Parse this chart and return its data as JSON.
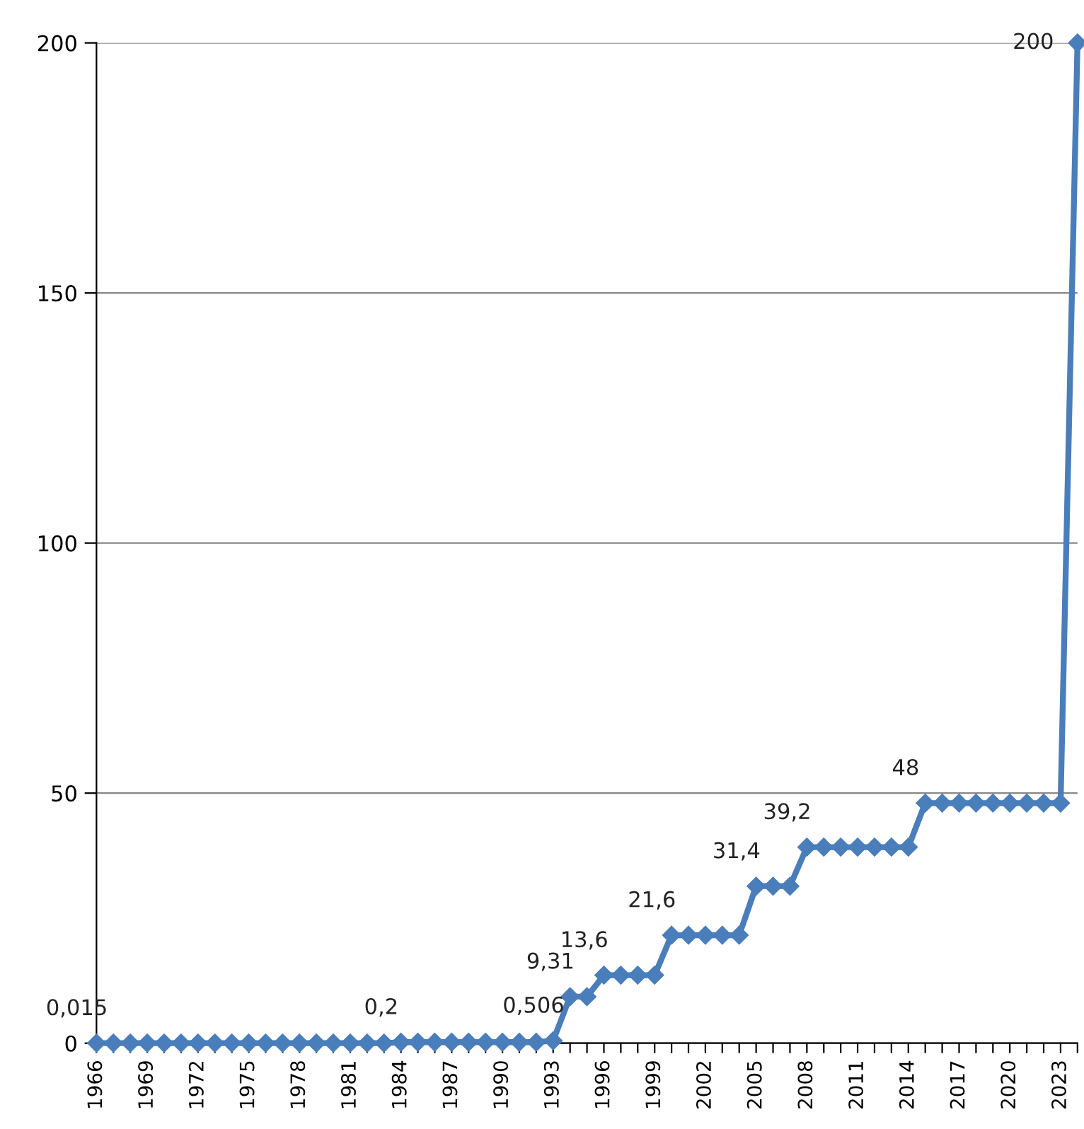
{
  "chart_data": {
    "type": "line",
    "categories": [
      "1966",
      null,
      null,
      "1969",
      null,
      null,
      "1972",
      null,
      null,
      "1975",
      null,
      null,
      "1978",
      null,
      null,
      "1981",
      null,
      null,
      "1984",
      null,
      null,
      "1987",
      null,
      null,
      "1990",
      null,
      null,
      "1993",
      null,
      null,
      "1996",
      null,
      null,
      "1999",
      null,
      null,
      "2002",
      null,
      null,
      "2005",
      null,
      null,
      "2008",
      null,
      null,
      "2011",
      null,
      null,
      "2014",
      null,
      null,
      "2017",
      null,
      null,
      "2020",
      null,
      null,
      "2023",
      null
    ],
    "series": [
      {
        "color": "#4a7ebb",
        "values": [
          0.015,
          0.015,
          0.015,
          0.015,
          0.015,
          0.015,
          0.015,
          0.015,
          0.015,
          0.015,
          0.015,
          0.015,
          0.015,
          0.015,
          0.015,
          0.015,
          0.015,
          0.015,
          0.2,
          0.2,
          0.2,
          0.2,
          0.2,
          0.2,
          0.2,
          0.2,
          0.2,
          0.506,
          9.31,
          9.31,
          13.6,
          13.6,
          13.6,
          13.6,
          21.6,
          21.6,
          21.6,
          21.6,
          21.6,
          31.4,
          31.4,
          31.4,
          39.2,
          39.2,
          39.2,
          39.2,
          39.2,
          39.2,
          39.2,
          48,
          48,
          48,
          48,
          48,
          48,
          48,
          48,
          48,
          200
        ],
        "value_labels": [
          "0,015",
          null,
          null,
          null,
          null,
          null,
          null,
          null,
          null,
          null,
          null,
          null,
          null,
          null,
          null,
          null,
          null,
          null,
          "0,2",
          null,
          null,
          null,
          null,
          null,
          null,
          null,
          null,
          "0,506",
          "9,31",
          null,
          "13,6",
          null,
          null,
          null,
          "21,6",
          null,
          null,
          null,
          null,
          "31,4",
          null,
          null,
          "39,2",
          null,
          null,
          null,
          null,
          null,
          null,
          "48",
          null,
          null,
          null,
          null,
          null,
          null,
          null,
          null,
          "200"
        ]
      }
    ],
    "ylim": [
      0,
      200
    ],
    "yticks": [
      0,
      50,
      100,
      150,
      200
    ],
    "grid": "y",
    "marker": "diamond",
    "line_style": "solid"
  }
}
